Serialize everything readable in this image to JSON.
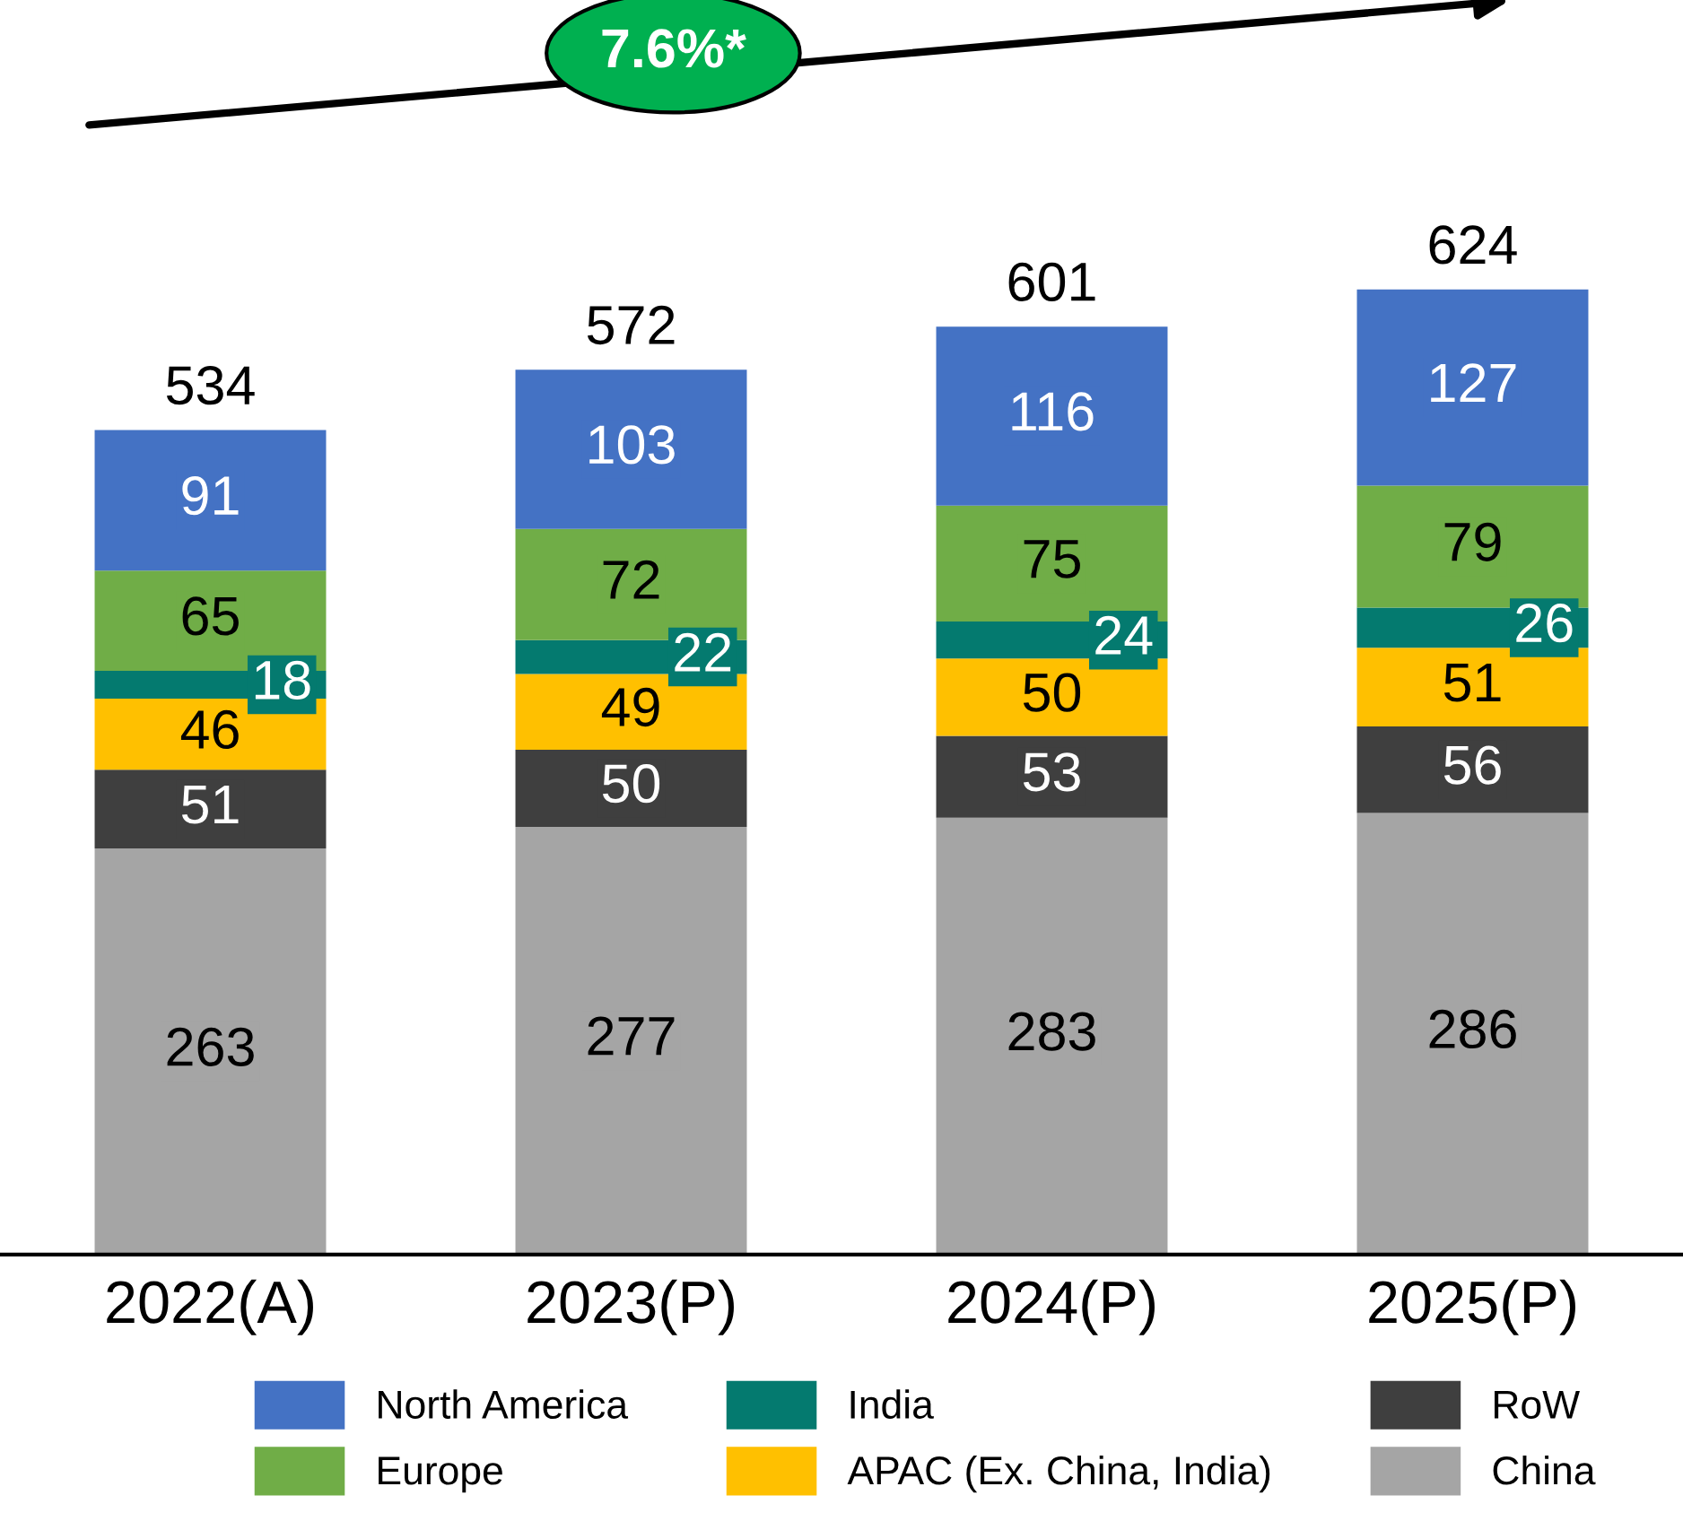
{
  "chart_data": {
    "type": "bar",
    "stacked": true,
    "relative": false,
    "categories": [
      "2022(A)",
      "2023(P)",
      "2024(P)",
      "2025(P)"
    ],
    "series": [
      {
        "name": "China",
        "color": "#a5a5a5",
        "values": [
          263,
          277,
          283,
          286
        ]
      },
      {
        "name": "RoW",
        "color": "#3f3f3f",
        "values": [
          51,
          50,
          53,
          56
        ]
      },
      {
        "name": "APAC (Ex. China, India)",
        "color": "#ffc000",
        "values": [
          46,
          49,
          50,
          51
        ]
      },
      {
        "name": "India",
        "color": "#047a6f",
        "values": [
          18,
          22,
          24,
          26
        ]
      },
      {
        "name": "Europe",
        "color": "#70ad47",
        "values": [
          65,
          72,
          75,
          79
        ]
      },
      {
        "name": "North America",
        "color": "#4472c4",
        "values": [
          91,
          103,
          116,
          127
        ]
      }
    ],
    "totals": [
      "534",
      "572",
      "601",
      "624"
    ],
    "data_labels": true,
    "annotations": [
      "7.6%*"
    ],
    "legend": "bottom",
    "grid": false
  }
}
